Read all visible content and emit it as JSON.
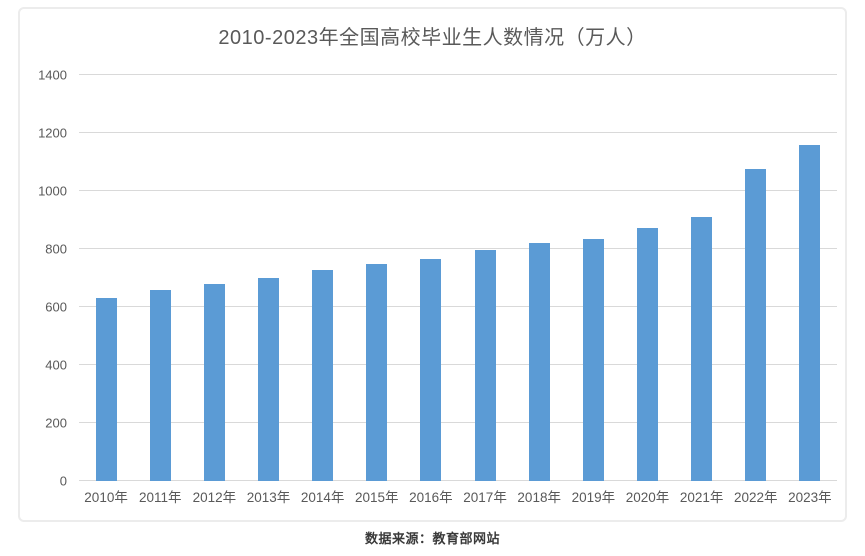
{
  "title": "2010-2023年全国高校毕业生人数情况（万人）",
  "source_note": "数据来源：教育部网站",
  "chart_data": {
    "type": "bar",
    "title": "2010-2023年全国高校毕业生人数情况（万人）",
    "categories": [
      "2010年",
      "2011年",
      "2012年",
      "2013年",
      "2014年",
      "2015年",
      "2016年",
      "2017年",
      "2018年",
      "2019年",
      "2020年",
      "2021年",
      "2022年",
      "2023年"
    ],
    "values": [
      631,
      660,
      680,
      699,
      727,
      749,
      765,
      795,
      820,
      834,
      874,
      909,
      1076,
      1158
    ],
    "xlabel": "",
    "ylabel": "",
    "ylim": [
      0,
      1400
    ],
    "yticks": [
      0,
      200,
      400,
      600,
      800,
      1000,
      1200,
      1400
    ],
    "grid": "horizontal",
    "legend": "none",
    "source_note": "数据来源：教育部网站"
  },
  "colors": {
    "bar": "#5B9BD5",
    "gridline": "#D9D9D9",
    "title_text": "#595959",
    "axis_text": "#595959",
    "caption_text": "#3A3A3A",
    "frame_border": "#ECECEC",
    "background": "#FFFFFF"
  }
}
